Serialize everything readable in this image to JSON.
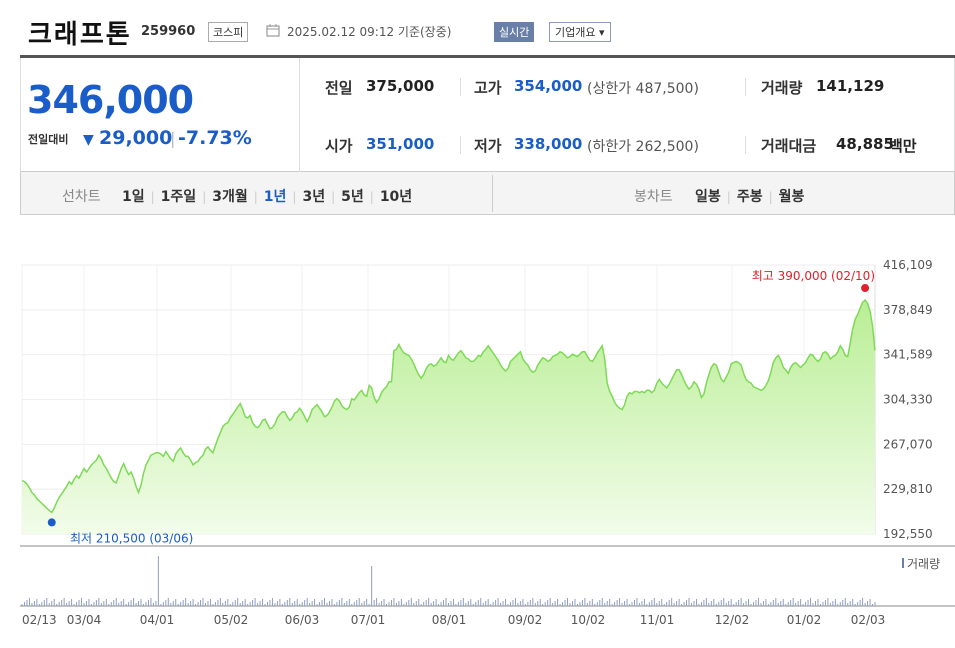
{
  "header": {
    "name": "크래프톤",
    "code": "259960",
    "market": "코스피",
    "datetime": "2025.02.12 09:12  기준(장중)",
    "realtime_label": "실시간",
    "company_button": "기업개요 ▾"
  },
  "quote": {
    "price": "346,000",
    "change_label": "전일대비",
    "change_arrow": "▼",
    "change_value": "29,000",
    "change_sep": "|",
    "change_pct": "-7.73%",
    "prev_label": "전일",
    "prev_value": "375,000",
    "high_label": "고가",
    "high_value": "354,000",
    "upper_label": "(상한가 487,500)",
    "volume_label": "거래량",
    "volume_value": "141,129",
    "open_label": "시가",
    "open_value": "351,000",
    "low_label": "저가",
    "low_value": "338,000",
    "lower_label": "(하한가 262,500)",
    "amount_label": "거래대금",
    "amount_value": "48,885",
    "amount_unit": "백만"
  },
  "ranges": {
    "line_label": "선차트",
    "line_options": [
      "1일",
      "1주일",
      "3개월",
      "1년",
      "3년",
      "5년",
      "10년"
    ],
    "active": "1년",
    "candle_label": "봉차트",
    "candle_options": [
      "일봉",
      "주봉",
      "월봉"
    ]
  },
  "colors": {
    "accent_blue": "#1a5cc8",
    "line_green": "#7ed957",
    "fill_green": "#d9f7c6",
    "high_red": "#e0202b",
    "low_blue": "#1a5cc8"
  },
  "chart_data": {
    "type": "area",
    "x_ticks": [
      "02/13",
      "03/04",
      "04/01",
      "05/02",
      "06/03",
      "07/01",
      "08/01",
      "09/02",
      "10/02",
      "11/01",
      "12/02",
      "01/02",
      "02/03"
    ],
    "y_ticks": [
      "416,109",
      "378,849",
      "341,589",
      "304,330",
      "267,070",
      "229,810",
      "192,550"
    ],
    "ylim": [
      192550,
      416109
    ],
    "high_annotation": "최고 390,000 (02/10)",
    "low_annotation": "최저 210,500 (03/06)",
    "volume_label": "거래량",
    "series": [
      {
        "values": [
          237000,
          236000,
          234000,
          231000,
          227000,
          225000,
          222000,
          220000,
          218000,
          216000,
          214000,
          212000,
          210500,
          214000,
          219000,
          223000,
          226000,
          229000,
          232000,
          236000,
          234000,
          238000,
          241000,
          239000,
          243000,
          247000,
          244000,
          247000,
          250000,
          252000,
          254000,
          258000,
          255000,
          250000,
          247000,
          243000,
          239000,
          236000,
          235000,
          241000,
          247000,
          251000,
          246000,
          242000,
          244000,
          239000,
          232000,
          227000,
          233000,
          243000,
          250000,
          254000,
          258000,
          259000,
          260000,
          260000,
          259000,
          257000,
          261000,
          258000,
          255000,
          253000,
          259000,
          262000,
          264000,
          260000,
          257000,
          257000,
          254000,
          250000,
          252000,
          253000,
          256000,
          258000,
          263000,
          265000,
          262000,
          260000,
          266000,
          272000,
          277000,
          282000,
          284000,
          285000,
          289000,
          292000,
          295000,
          298000,
          301000,
          296000,
          290000,
          289000,
          291000,
          285000,
          282000,
          281000,
          283000,
          287000,
          288000,
          284000,
          280000,
          281000,
          284000,
          289000,
          292000,
          294000,
          294000,
          290000,
          287000,
          289000,
          293000,
          294000,
          297000,
          294000,
          290000,
          286000,
          290000,
          296000,
          298000,
          300000,
          297000,
          294000,
          290000,
          291000,
          294000,
          298000,
          303000,
          305000,
          303000,
          299000,
          297000,
          296000,
          298000,
          305000,
          304000,
          307000,
          310000,
          312000,
          308000,
          307000,
          316000,
          314000,
          306000,
          302000,
          305000,
          310000,
          313000,
          315000,
          319000,
          319000,
          345000,
          346000,
          350000,
          346000,
          343000,
          342000,
          341000,
          338000,
          334000,
          329000,
          325000,
          322000,
          325000,
          330000,
          333000,
          334000,
          332000,
          333000,
          336000,
          339000,
          336000,
          335000,
          341000,
          338000,
          337000,
          340000,
          343000,
          345000,
          342000,
          339000,
          338000,
          336000,
          336000,
          338000,
          341000,
          340000,
          344000,
          346000,
          349000,
          346000,
          343000,
          340000,
          337000,
          333000,
          330000,
          328000,
          330000,
          336000,
          338000,
          340000,
          342000,
          344000,
          338000,
          335000,
          333000,
          329000,
          327000,
          328000,
          333000,
          336000,
          339000,
          338000,
          336000,
          337000,
          340000,
          341000,
          342000,
          344000,
          343000,
          341000,
          339000,
          340000,
          342000,
          341000,
          340000,
          342000,
          344000,
          344000,
          340000,
          337000,
          336000,
          339000,
          343000,
          346000,
          349000,
          338000,
          318000,
          311000,
          307000,
          302000,
          299000,
          297000,
          296000,
          300000,
          307000,
          310000,
          309000,
          311000,
          311000,
          310000,
          311000,
          310000,
          312000,
          312000,
          310000,
          312000,
          318000,
          321000,
          318000,
          316000,
          314000,
          317000,
          321000,
          325000,
          329000,
          329000,
          325000,
          320000,
          316000,
          313000,
          315000,
          319000,
          317000,
          313000,
          306000,
          309000,
          318000,
          325000,
          331000,
          334000,
          333000,
          327000,
          321000,
          319000,
          323000,
          327000,
          334000,
          335000,
          336000,
          335000,
          333000,
          326000,
          321000,
          319000,
          318000,
          315000,
          314000,
          313000,
          312000,
          313000,
          316000,
          320000,
          327000,
          335000,
          339000,
          341000,
          337000,
          331000,
          329000,
          326000,
          331000,
          334000,
          335000,
          333000,
          331000,
          333000,
          335000,
          339000,
          342000,
          341000,
          338000,
          336000,
          338000,
          343000,
          344000,
          342000,
          338000,
          340000,
          341000,
          344000,
          349000,
          346000,
          341000,
          340000,
          351000,
          363000,
          371000,
          375000,
          380000,
          385000,
          387000,
          384000,
          378000,
          366000,
          345000
        ]
      }
    ]
  }
}
